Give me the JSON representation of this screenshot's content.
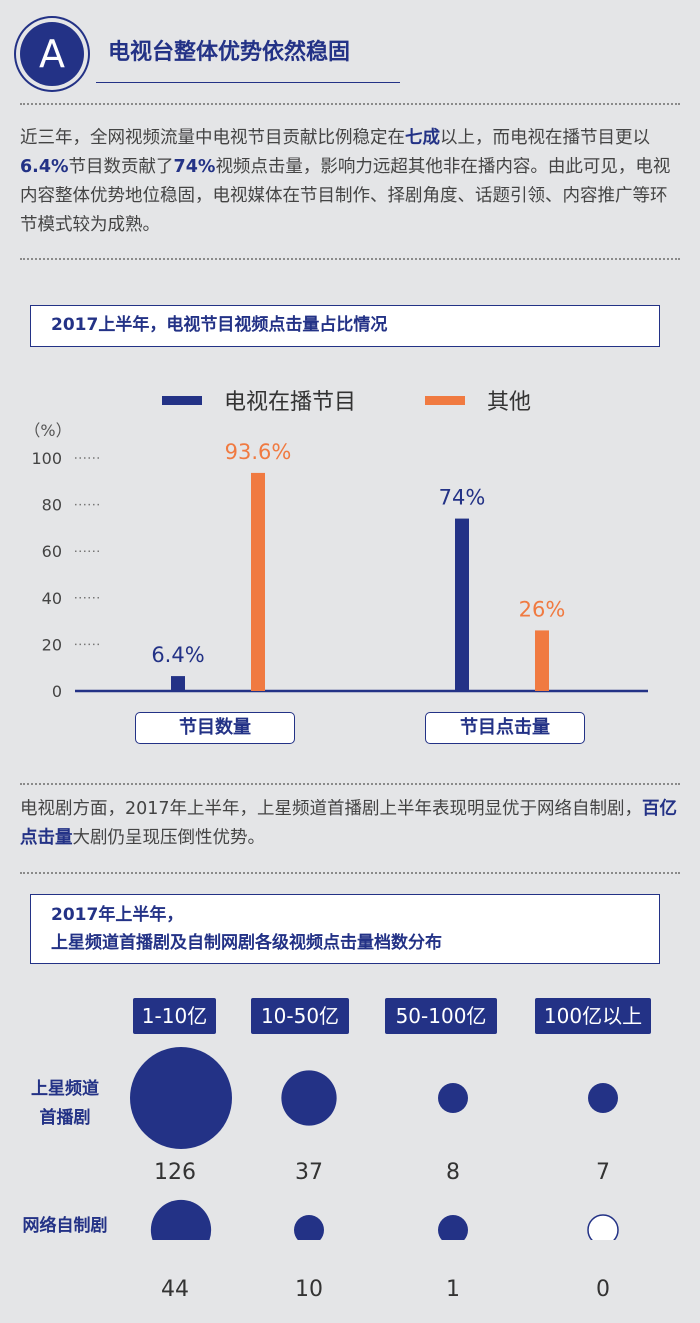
{
  "header": {
    "badge": "A",
    "title": "电视台整体优势依然稳固"
  },
  "intro": {
    "p1": "近三年，全网视频流量中电视节目贡献比例稳定在",
    "h1": "七成",
    "p2": "以上，而电视在播节目更以",
    "h2": "6.4%",
    "p3": "节目数贡献了",
    "h3": "74%",
    "p4": "视频点击量，影响力远超其他非在播内容。由此可见，电视内容整体优势地位稳固，电视媒体在节目制作、择剧角度、话题引领、内容推广等环节模式较为成熟。"
  },
  "chart1_title": "2017上半年，电视节目视频点击量占比情况",
  "chart_data": [
    {
      "type": "bar",
      "unit_label": "（%）",
      "ylim": [
        0,
        100
      ],
      "yticks": [
        "100",
        "80",
        "60",
        "40",
        "20",
        "0"
      ],
      "categories": [
        "节目数量",
        "节目点击量"
      ],
      "series": [
        {
          "name": "电视在播节目",
          "color": "#233286",
          "values": [
            6.4,
            74
          ],
          "labels": [
            "6.4%",
            "74%"
          ]
        },
        {
          "name": "其他",
          "color": "#f07a41",
          "values": [
            93.6,
            26
          ],
          "labels": [
            "93.6%",
            "26%"
          ]
        }
      ],
      "legend_position": "top"
    },
    {
      "type": "bubble",
      "title_line1": "2017年上半年，",
      "title_line2": "上星频道首播剧及自制网剧各级视频点击量档数分布",
      "categories": [
        "1-10亿",
        "10-50亿",
        "50-100亿",
        "100亿以上"
      ],
      "series": [
        {
          "name_line1": "上星频道",
          "name_line2": "首播剧",
          "values": [
            126,
            37,
            8,
            7
          ]
        },
        {
          "name_line1": "网络自制剧",
          "name_line2": "",
          "values": [
            44,
            10,
            1,
            0
          ]
        }
      ],
      "color": "#233286"
    }
  ],
  "middle": {
    "p1": "电视剧方面，2017年上半年，上星频道首播剧上半年表现明显优于网络自制剧，",
    "h1": "百亿点击量",
    "p2": "大剧仍呈现压倒性优势。"
  }
}
